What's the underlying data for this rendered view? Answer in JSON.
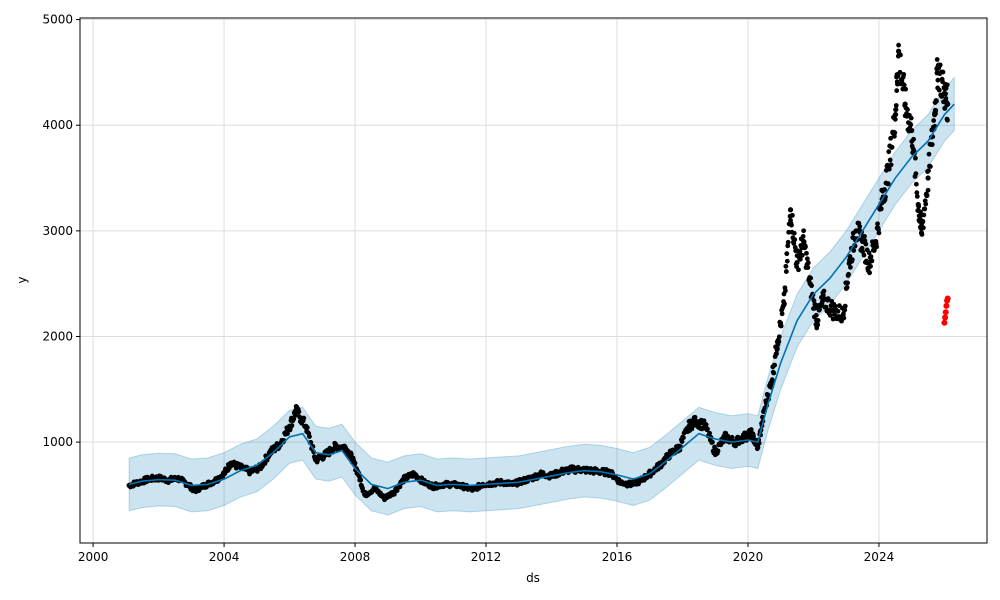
{
  "chart_data": {
    "type": "scatter",
    "xlabel": "ds",
    "ylabel": "y",
    "xlim": [
      1999.6,
      2027.3
    ],
    "ylim": [
      45,
      5015
    ],
    "grid": true,
    "x_ticks": [
      2000,
      2004,
      2008,
      2012,
      2016,
      2020,
      2024
    ],
    "x_tick_labels": [
      "2000",
      "2004",
      "2008",
      "2012",
      "2016",
      "2020",
      "2024"
    ],
    "y_ticks": [
      1000,
      2000,
      3000,
      4000,
      5000
    ],
    "y_tick_labels": [
      "1000",
      "2000",
      "3000",
      "4000",
      "5000"
    ],
    "colors": {
      "observed": "#000000",
      "forecast_line": "#0072B2",
      "uncertainty_band": "#0072B2",
      "outliers": "#ff0000",
      "grid": "#dddddd"
    },
    "series": [
      {
        "role": "observed",
        "points": [
          [
            2001.1,
            590
          ],
          [
            2001.4,
            620
          ],
          [
            2001.7,
            650
          ],
          [
            2002.0,
            660
          ],
          [
            2002.3,
            640
          ],
          [
            2002.6,
            655
          ],
          [
            2002.9,
            600
          ],
          [
            2003.1,
            540
          ],
          [
            2003.4,
            590
          ],
          [
            2003.7,
            630
          ],
          [
            2004.0,
            700
          ],
          [
            2004.2,
            800
          ],
          [
            2004.5,
            760
          ],
          [
            2004.8,
            720
          ],
          [
            2005.1,
            760
          ],
          [
            2005.4,
            900
          ],
          [
            2005.7,
            980
          ],
          [
            2006.0,
            1150
          ],
          [
            2006.2,
            1300
          ],
          [
            2006.5,
            1150
          ],
          [
            2006.8,
            830
          ],
          [
            2007.1,
            880
          ],
          [
            2007.4,
            960
          ],
          [
            2007.7,
            950
          ],
          [
            2007.9,
            850
          ],
          [
            2008.1,
            700
          ],
          [
            2008.3,
            500
          ],
          [
            2008.6,
            560
          ],
          [
            2008.9,
            470
          ],
          [
            2009.2,
            530
          ],
          [
            2009.5,
            650
          ],
          [
            2009.8,
            700
          ],
          [
            2010.1,
            620
          ],
          [
            2010.4,
            580
          ],
          [
            2010.7,
            600
          ],
          [
            2011.0,
            600
          ],
          [
            2011.3,
            580
          ],
          [
            2011.6,
            550
          ],
          [
            2011.9,
            600
          ],
          [
            2012.2,
            610
          ],
          [
            2012.5,
            620
          ],
          [
            2012.8,
            600
          ],
          [
            2013.1,
            630
          ],
          [
            2013.4,
            660
          ],
          [
            2013.7,
            700
          ],
          [
            2014.0,
            680
          ],
          [
            2014.3,
            720
          ],
          [
            2014.6,
            740
          ],
          [
            2014.9,
            740
          ],
          [
            2015.2,
            730
          ],
          [
            2015.5,
            720
          ],
          [
            2015.8,
            710
          ],
          [
            2016.1,
            620
          ],
          [
            2016.4,
            600
          ],
          [
            2016.7,
            630
          ],
          [
            2017.0,
            700
          ],
          [
            2017.3,
            780
          ],
          [
            2017.6,
            880
          ],
          [
            2017.9,
            950
          ],
          [
            2018.2,
            1150
          ],
          [
            2018.4,
            1200
          ],
          [
            2018.7,
            1150
          ],
          [
            2019.0,
            900
          ],
          [
            2019.3,
            1050
          ],
          [
            2019.6,
            1000
          ],
          [
            2019.9,
            1050
          ],
          [
            2020.1,
            1080
          ],
          [
            2020.3,
            950
          ],
          [
            2020.5,
            1300
          ],
          [
            2020.7,
            1550
          ],
          [
            2020.9,
            1950
          ],
          [
            2021.1,
            2300
          ],
          [
            2021.3,
            3200
          ],
          [
            2021.5,
            2700
          ],
          [
            2021.7,
            2900
          ],
          [
            2021.9,
            2500
          ],
          [
            2022.1,
            2150
          ],
          [
            2022.3,
            2350
          ],
          [
            2022.6,
            2250
          ],
          [
            2022.9,
            2200
          ],
          [
            2023.1,
            2700
          ],
          [
            2023.3,
            3000
          ],
          [
            2023.5,
            2900
          ],
          [
            2023.7,
            2700
          ],
          [
            2023.9,
            2900
          ],
          [
            2024.1,
            3300
          ],
          [
            2024.3,
            3600
          ],
          [
            2024.5,
            4100
          ],
          [
            2024.6,
            4700
          ],
          [
            2024.8,
            4200
          ],
          [
            2025.0,
            3950
          ],
          [
            2025.2,
            3250
          ],
          [
            2025.3,
            2980
          ],
          [
            2025.5,
            3500
          ],
          [
            2025.7,
            4100
          ],
          [
            2025.8,
            4550
          ],
          [
            2026.0,
            4300
          ],
          [
            2026.1,
            4200
          ]
        ]
      },
      {
        "role": "outliers",
        "points": [
          [
            2026.0,
            2130
          ],
          [
            2026.02,
            2180
          ],
          [
            2026.04,
            2230
          ],
          [
            2026.06,
            2290
          ],
          [
            2026.08,
            2340
          ],
          [
            2026.1,
            2360
          ]
        ]
      },
      {
        "role": "forecast",
        "yhat": [
          [
            2001.1,
            600
          ],
          [
            2001.5,
            630
          ],
          [
            2002.0,
            645
          ],
          [
            2002.5,
            640
          ],
          [
            2003.0,
            590
          ],
          [
            2003.5,
            600
          ],
          [
            2004.0,
            650
          ],
          [
            2004.5,
            730
          ],
          [
            2005.0,
            780
          ],
          [
            2005.5,
            900
          ],
          [
            2006.0,
            1050
          ],
          [
            2006.4,
            1080
          ],
          [
            2006.8,
            900
          ],
          [
            2007.2,
            880
          ],
          [
            2007.6,
            920
          ],
          [
            2008.0,
            750
          ],
          [
            2008.5,
            600
          ],
          [
            2009.0,
            560
          ],
          [
            2009.5,
            620
          ],
          [
            2010.0,
            640
          ],
          [
            2010.5,
            590
          ],
          [
            2011.0,
            600
          ],
          [
            2011.5,
            590
          ],
          [
            2012.0,
            600
          ],
          [
            2012.5,
            610
          ],
          [
            2013.0,
            620
          ],
          [
            2013.5,
            650
          ],
          [
            2014.0,
            680
          ],
          [
            2014.5,
            710
          ],
          [
            2015.0,
            730
          ],
          [
            2015.5,
            720
          ],
          [
            2016.0,
            690
          ],
          [
            2016.5,
            650
          ],
          [
            2017.0,
            700
          ],
          [
            2017.5,
            820
          ],
          [
            2018.0,
            950
          ],
          [
            2018.5,
            1080
          ],
          [
            2019.0,
            1030
          ],
          [
            2019.5,
            1000
          ],
          [
            2020.0,
            1020
          ],
          [
            2020.3,
            1000
          ],
          [
            2020.6,
            1350
          ],
          [
            2021.0,
            1750
          ],
          [
            2021.5,
            2150
          ],
          [
            2022.0,
            2400
          ],
          [
            2022.5,
            2550
          ],
          [
            2023.0,
            2750
          ],
          [
            2023.5,
            3000
          ],
          [
            2024.0,
            3250
          ],
          [
            2024.5,
            3500
          ],
          [
            2025.0,
            3700
          ],
          [
            2025.5,
            3850
          ],
          [
            2026.0,
            4100
          ],
          [
            2026.3,
            4200
          ]
        ],
        "band_half_width": 250
      }
    ]
  }
}
